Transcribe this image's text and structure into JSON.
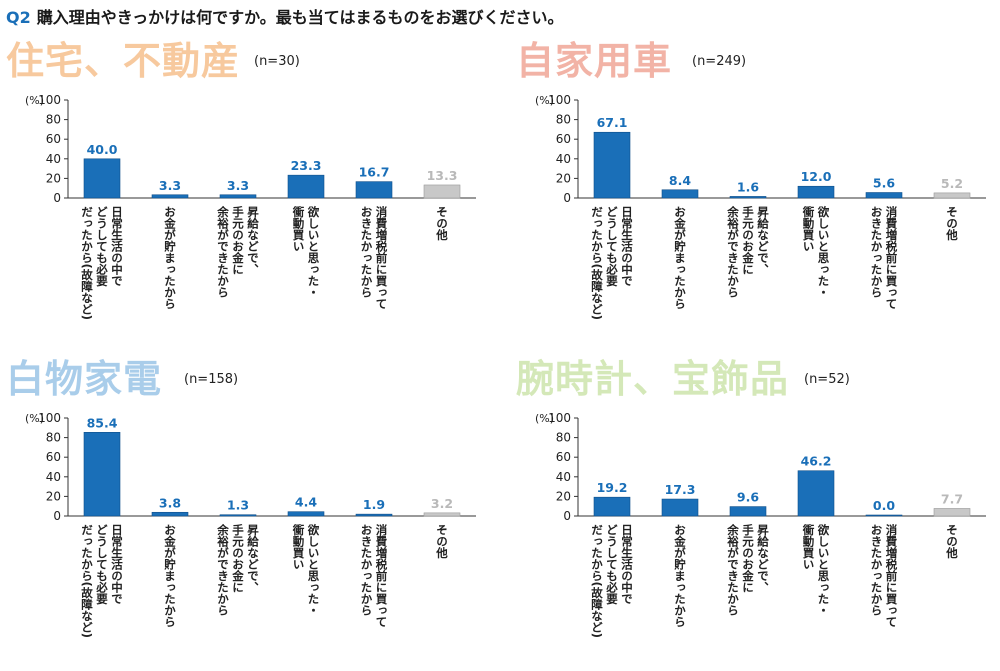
{
  "question": {
    "number": "Q2",
    "text": "購入理由やきっかけは何ですか。最も当てはまるものをお選びください。"
  },
  "colors": {
    "bar": "#1a6fb8",
    "bar_other": "#c8c8c8",
    "value_label": "#1a6fb8",
    "value_label_other": "#b9b9b9"
  },
  "chart_data": [
    {
      "type": "bar",
      "title": "住宅、不動産",
      "title_color": "#f7c99e",
      "n_label": "(n=30)",
      "ylabel": "(%)",
      "ylim": [
        0,
        100
      ],
      "yticks": [
        "0",
        "20",
        "40",
        "60",
        "80",
        "100"
      ],
      "categories": [
        "日常生活の中で どうしても必要 だったから(故障など)",
        "お金が貯まったから",
        "昇給などで、 手元のお金に 余裕ができたから",
        "欲しいと思った・ 衝動買い",
        "消費増税前に買って おきたかったから",
        "その他"
      ],
      "values": [
        40.0,
        3.3,
        3.3,
        23.3,
        16.7,
        13.3
      ],
      "value_labels": [
        "40.0",
        "3.3",
        "3.3",
        "23.3",
        "16.7",
        "13.3"
      ]
    },
    {
      "type": "bar",
      "title": "自家用車",
      "title_color": "#f2b3a6",
      "n_label": "(n=249)",
      "ylabel": "(%)",
      "ylim": [
        0,
        100
      ],
      "yticks": [
        "0",
        "20",
        "40",
        "60",
        "80",
        "100"
      ],
      "categories": [
        "日常生活の中で どうしても必要 だったから(故障など)",
        "お金が貯まったから",
        "昇給などで、 手元のお金に 余裕ができたから",
        "欲しいと思った・ 衝動買い",
        "消費増税前に買って おきたかったから",
        "その他"
      ],
      "values": [
        67.1,
        8.4,
        1.6,
        12.0,
        5.6,
        5.2
      ],
      "value_labels": [
        "67.1",
        "8.4",
        "1.6",
        "12.0",
        "5.6",
        "5.2"
      ]
    },
    {
      "type": "bar",
      "title": "白物家電",
      "title_color": "#a9cdea",
      "n_label": "(n=158)",
      "ylabel": "(%)",
      "ylim": [
        0,
        100
      ],
      "yticks": [
        "0",
        "20",
        "40",
        "60",
        "80",
        "100"
      ],
      "categories": [
        "日常生活の中で どうしても必要 だったから(故障など)",
        "お金が貯まったから",
        "昇給などで、 手元のお金に 余裕ができたから",
        "欲しいと思った・ 衝動買い",
        "消費増税前に買って おきたかったから",
        "その他"
      ],
      "values": [
        85.4,
        3.8,
        1.3,
        4.4,
        1.9,
        3.2
      ],
      "value_labels": [
        "85.4",
        "3.8",
        "1.3",
        "4.4",
        "1.9",
        "3.2"
      ]
    },
    {
      "type": "bar",
      "title": "腕時計、宝飾品",
      "title_color": "#d4e8b8",
      "n_label": "(n=52)",
      "ylabel": "(%)",
      "ylim": [
        0,
        100
      ],
      "yticks": [
        "0",
        "20",
        "40",
        "60",
        "80",
        "100"
      ],
      "categories": [
        "日常生活の中で どうしても必要 だったから(故障など)",
        "お金が貯まったから",
        "昇給などで、 手元のお金に 余裕ができたから",
        "欲しいと思った・ 衝動買い",
        "消費増税前に買って おきたかったから",
        "その他"
      ],
      "values": [
        19.2,
        17.3,
        9.6,
        46.2,
        0.0,
        7.7
      ],
      "value_labels": [
        "19.2",
        "17.3",
        "9.6",
        "46.2",
        "0.0",
        "7.7"
      ]
    }
  ]
}
